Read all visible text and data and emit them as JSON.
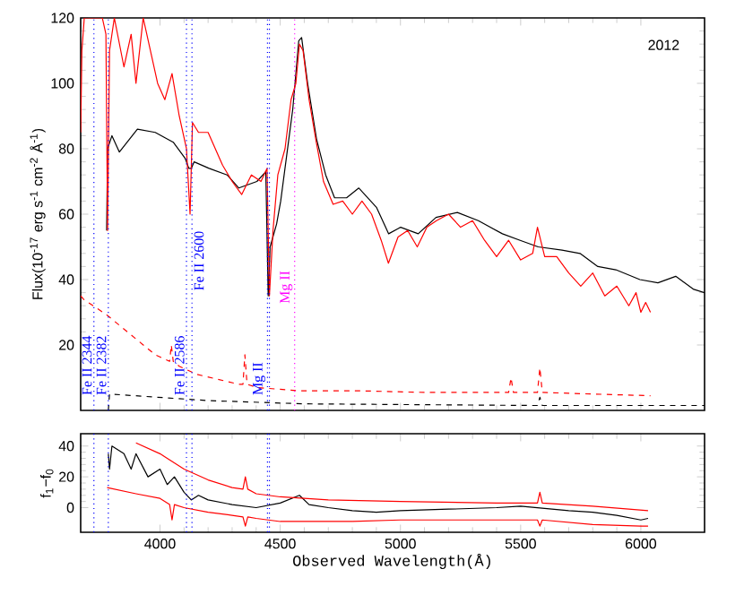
{
  "chart_data": [
    {
      "type": "line",
      "ylabel": "Flux(10$^{-17}$ erg s$^{-1}$ cm$^{-2}$ Å$^{-1}$)",
      "annotations": [
        "2012"
      ],
      "xlim": [
        3670,
        6265
      ],
      "ylim": [
        0,
        120
      ],
      "xticks": [
        {
          "value": 4000,
          "label": null
        },
        {
          "value": 4500,
          "label": null
        },
        {
          "value": 5000,
          "label": null
        },
        {
          "value": 5500,
          "label": null
        },
        {
          "value": 6000,
          "label": null
        }
      ],
      "yticks": [
        20,
        40,
        60,
        80,
        100,
        120
      ],
      "tick_labels": "y",
      "series": [
        {
          "color": "#000000",
          "line_style": "solid",
          "x": [
            3778,
            3782,
            3800,
            3831,
            3906,
            3980,
            4055,
            4105,
            4120,
            4125,
            4130,
            4142,
            4204,
            4279,
            4328,
            4403,
            4440,
            4450,
            4458,
            4485,
            4502,
            4552,
            4577,
            4589,
            4614,
            4651,
            4689,
            4726,
            4776,
            4827,
            4901,
            4951,
            5001,
            5074,
            5148,
            5237,
            5324,
            5424,
            5498,
            5573,
            5672,
            5747,
            5821,
            5896,
            5996,
            6071,
            6145,
            6220,
            6265
          ],
          "values": [
            55,
            80,
            84,
            79,
            86,
            85,
            82,
            77,
            74,
            null,
            74,
            76,
            74,
            72,
            68,
            70,
            73,
            35,
            50,
            57,
            64,
            92,
            113,
            114,
            100,
            83,
            72,
            65,
            65,
            68,
            62,
            54,
            56,
            54,
            59,
            60.5,
            58,
            54,
            52,
            50,
            49,
            48,
            44,
            43,
            40,
            39,
            41,
            37,
            36
          ]
        },
        {
          "color": "#ff0000",
          "line_style": "solid",
          "x": [
            3670,
            3675,
            3685,
            3760,
            3775,
            3782,
            3790,
            3810,
            3850,
            3880,
            3900,
            3930,
            3960,
            3990,
            4020,
            4050,
            4080,
            4110,
            4125,
            4135,
            4160,
            4200,
            4230,
            4260,
            4300,
            4340,
            4380,
            4420,
            4445,
            4455,
            4470,
            4490,
            4520,
            4545,
            4565,
            4580,
            4595,
            4620,
            4650,
            4680,
            4720,
            4760,
            4800,
            4840,
            4880,
            4920,
            4950,
            4990,
            5030,
            5070,
            5110,
            5150,
            5200,
            5250,
            5300,
            5350,
            5400,
            5450,
            5500,
            5550,
            5570,
            5600,
            5650,
            5700,
            5750,
            5800,
            5850,
            5900,
            5950,
            5980,
            6000,
            6020,
            6040
          ],
          "values": [
            85,
            110,
            120,
            120,
            115,
            55,
            110,
            120,
            105,
            115,
            100,
            120,
            110,
            100,
            95,
            103,
            90,
            80,
            60,
            88,
            85,
            85,
            80,
            75,
            70,
            66,
            72,
            70,
            74,
            35,
            55,
            72,
            80,
            95,
            100,
            112,
            110,
            95,
            82,
            70,
            63,
            64,
            60,
            64,
            60,
            52,
            45,
            53,
            55,
            50,
            56,
            58,
            60,
            56,
            58,
            52,
            47,
            52,
            46,
            48,
            56,
            47,
            47,
            42,
            38,
            42,
            35,
            38,
            32,
            36,
            30,
            33,
            30
          ]
        },
        {
          "color": "#ff0000",
          "line_style": "dashed",
          "x": [
            3670,
            3682,
            3782,
            3881,
            3980,
            4040,
            4047,
            4055,
            4080,
            4154,
            4328,
            4345,
            4353,
            4362,
            4403,
            4577,
            4825,
            5100,
            5450,
            5460,
            5470,
            5570,
            5580,
            5590,
            5800,
            6040
          ],
          "values": [
            35,
            34,
            29,
            23,
            17,
            15,
            20,
            15,
            13.5,
            11,
            8,
            8,
            17,
            8,
            7,
            6,
            6,
            5.5,
            5.5,
            10,
            5.5,
            5.5,
            13,
            5.5,
            5,
            4.5
          ]
        },
        {
          "color": "#000000",
          "line_style": "dashed",
          "x": [
            3785,
            3790,
            4200,
            4600,
            5570,
            5580,
            5590,
            6265
          ],
          "values": [
            0,
            5,
            3,
            2,
            1.5,
            4,
            1.5,
            1.5
          ]
        }
      ],
      "ref_lines": [
        {
          "axis": "x",
          "value": 3725,
          "label": "Fe II 2344",
          "color": "#0000ff",
          "line_style": "dotted"
        },
        {
          "axis": "x",
          "value": 3785,
          "label": "Fe II 2382",
          "color": "#0000ff",
          "line_style": "dotted"
        },
        {
          "axis": "x",
          "value": 4110,
          "label": "Fe II 2586",
          "color": "#0000ff",
          "line_style": "dotted"
        },
        {
          "axis": "x",
          "value": 4133,
          "label": "Fe II 2600",
          "color": "#0000ff",
          "line_style": "dotted"
        },
        {
          "axis": "x",
          "value": 4447,
          "label": "Mg II",
          "color": "#0000ff",
          "line_style": "dotted"
        },
        {
          "axis": "x",
          "value": 4455,
          "color": "#0000ff",
          "line_style": "dotted"
        },
        {
          "axis": "x",
          "value": 4560,
          "label": "Mg II",
          "color": "#ff00ff",
          "line_style": "dotted"
        }
      ]
    },
    {
      "type": "line",
      "xlabel": "Observed Wavelength(Å)",
      "ylabel": "f$_{1}$−f$_{0}$",
      "xlim": [
        3670,
        6265
      ],
      "ylim": [
        -16,
        48
      ],
      "xticks": [
        4000,
        4500,
        5000,
        5500,
        6000
      ],
      "yticks": [
        0,
        20,
        40
      ],
      "series": [
        {
          "color": "#000000",
          "line_style": "solid",
          "x": [
            3785,
            3790,
            3800,
            3820,
            3850,
            3880,
            3900,
            3950,
            4000,
            4030,
            4060,
            4100,
            4130,
            4160,
            4200,
            4300,
            4400,
            4500,
            4580,
            4620,
            4700,
            4800,
            4900,
            5000,
            5200,
            5400,
            5500,
            5700,
            5800,
            5900,
            6000,
            6030
          ],
          "values": [
            35,
            25,
            40,
            null,
            35,
            25,
            35,
            20,
            25,
            15,
            20,
            10,
            5,
            8,
            5,
            2,
            0,
            3,
            8,
            2,
            0,
            -2,
            -3,
            -2,
            -1,
            0,
            1,
            -2,
            -3,
            -5,
            -8,
            -7
          ]
        },
        {
          "color": "#ff0000",
          "line_style": "solid",
          "x": [
            3900,
            4000,
            4100,
            4200,
            4300,
            4345,
            4355,
            4365,
            4400,
            4500,
            4700,
            5000,
            5400,
            5570,
            5580,
            5590,
            5800,
            6030
          ],
          "values": [
            42,
            35,
            25,
            18,
            13,
            12,
            20,
            12,
            9,
            7,
            5,
            4,
            3,
            3,
            10,
            3,
            1,
            -2
          ]
        },
        {
          "color": "#ff0000",
          "line_style": "solid",
          "x": [
            3780,
            3900,
            4000,
            4040,
            4050,
            4060,
            4100,
            4200,
            4300,
            4345,
            4355,
            4365,
            4400,
            4500,
            4800,
            5000,
            5400,
            5570,
            5580,
            5590,
            5800,
            6000,
            6030
          ],
          "values": [
            13,
            9,
            6,
            2,
            -8,
            2,
            0,
            -3,
            -5,
            -6,
            -12,
            -6,
            -7,
            -9,
            -9,
            -8,
            -8,
            -8,
            -12,
            -8,
            -11,
            -12,
            -12
          ]
        }
      ],
      "ref_lines": [
        {
          "axis": "x",
          "value": 3725,
          "color": "#0000ff",
          "line_style": "dotted"
        },
        {
          "axis": "x",
          "value": 3785,
          "color": "#0000ff",
          "line_style": "dotted"
        },
        {
          "axis": "x",
          "value": 4110,
          "color": "#0000ff",
          "line_style": "dotted"
        },
        {
          "axis": "x",
          "value": 4133,
          "color": "#0000ff",
          "line_style": "dotted"
        },
        {
          "axis": "x",
          "value": 4447,
          "color": "#0000ff",
          "line_style": "dotted"
        },
        {
          "axis": "x",
          "value": 4455,
          "color": "#0000ff",
          "line_style": "dotted"
        }
      ]
    }
  ]
}
